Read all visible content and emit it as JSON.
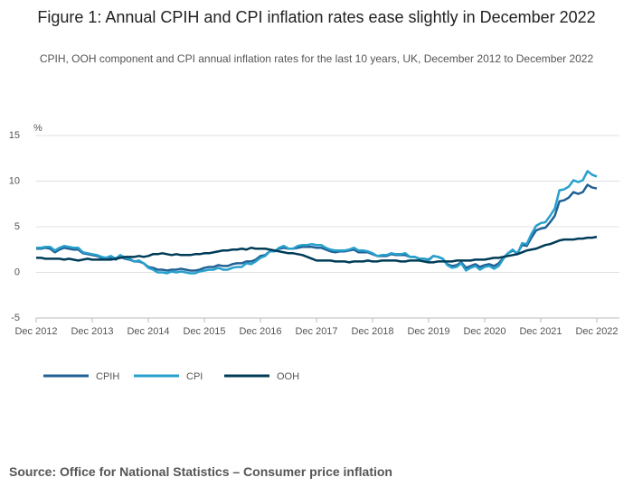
{
  "chart_data": {
    "type": "line",
    "title": "Figure 1: Annual CPIH and CPI inflation rates ease slightly in December 2022",
    "subtitle": "CPIH, OOH component and CPI annual inflation rates for the last 10 years, UK, December 2012 to December 2022",
    "y_unit": "%",
    "source": "Source: Office for National Statistics – Consumer price inflation",
    "categories": [
      "Dec 2012",
      null,
      null,
      null,
      null,
      null,
      null,
      null,
      null,
      null,
      null,
      null,
      "Dec 2013",
      null,
      null,
      null,
      null,
      null,
      null,
      null,
      null,
      null,
      null,
      null,
      "Dec 2014",
      null,
      null,
      null,
      null,
      null,
      null,
      null,
      null,
      null,
      null,
      null,
      "Dec 2015",
      null,
      null,
      null,
      null,
      null,
      null,
      null,
      null,
      null,
      null,
      null,
      "Dec 2016",
      null,
      null,
      null,
      null,
      null,
      null,
      null,
      null,
      null,
      null,
      null,
      "Dec 2017",
      null,
      null,
      null,
      null,
      null,
      null,
      null,
      null,
      null,
      null,
      null,
      "Dec 2018",
      null,
      null,
      null,
      null,
      null,
      null,
      null,
      null,
      null,
      null,
      null,
      "Dec 2019",
      null,
      null,
      null,
      null,
      null,
      null,
      null,
      null,
      null,
      null,
      null,
      "Dec 2020",
      null,
      null,
      null,
      null,
      null,
      null,
      null,
      null,
      null,
      null,
      null,
      "Dec 2021",
      null,
      null,
      null,
      null,
      null,
      null,
      null,
      null,
      null,
      null,
      null,
      "Dec 2022"
    ],
    "series": [
      {
        "name": "CPIH",
        "color": "#206095",
        "values": [
          2.6,
          2.6,
          2.7,
          2.6,
          2.2,
          2.5,
          2.7,
          2.6,
          2.5,
          2.5,
          2.1,
          2.0,
          1.9,
          1.8,
          1.6,
          1.5,
          1.6,
          1.4,
          1.7,
          1.5,
          1.4,
          1.2,
          1.2,
          1.0,
          0.6,
          0.5,
          0.3,
          0.3,
          0.2,
          0.3,
          0.3,
          0.4,
          0.3,
          0.2,
          0.2,
          0.3,
          0.5,
          0.6,
          0.6,
          0.8,
          0.7,
          0.7,
          0.9,
          1.0,
          1.0,
          1.2,
          1.2,
          1.4,
          1.8,
          1.9,
          2.3,
          2.3,
          2.6,
          2.7,
          2.6,
          2.6,
          2.7,
          2.8,
          2.8,
          2.8,
          2.7,
          2.7,
          2.5,
          2.3,
          2.2,
          2.3,
          2.3,
          2.4,
          2.5,
          2.2,
          2.2,
          2.2,
          2.0,
          1.8,
          1.8,
          1.8,
          2.0,
          1.9,
          1.9,
          1.9,
          1.7,
          1.7,
          1.5,
          1.5,
          1.4,
          1.8,
          1.7,
          1.5,
          0.9,
          0.7,
          0.8,
          1.1,
          0.5,
          0.7,
          0.9,
          0.6,
          0.8,
          0.9,
          0.7,
          1.0,
          1.6,
          2.1,
          2.4,
          2.1,
          3.0,
          2.9,
          3.8,
          4.6,
          4.8,
          4.9,
          5.5,
          6.2,
          7.8,
          7.9,
          8.2,
          8.8,
          8.6,
          8.8,
          9.6,
          9.3,
          9.2
        ]
      },
      {
        "name": "CPI",
        "color": "#27a0cc",
        "values": [
          2.7,
          2.7,
          2.8,
          2.8,
          2.4,
          2.7,
          2.9,
          2.8,
          2.7,
          2.7,
          2.2,
          2.1,
          2.0,
          1.9,
          1.7,
          1.6,
          1.8,
          1.5,
          1.9,
          1.6,
          1.5,
          1.2,
          1.3,
          1.0,
          0.5,
          0.3,
          0.0,
          0.0,
          -0.1,
          0.1,
          0.0,
          0.1,
          0.0,
          -0.1,
          -0.1,
          0.1,
          0.2,
          0.3,
          0.3,
          0.5,
          0.3,
          0.3,
          0.5,
          0.6,
          0.6,
          1.0,
          0.9,
          1.2,
          1.6,
          1.8,
          2.3,
          2.3,
          2.7,
          2.9,
          2.6,
          2.6,
          2.9,
          3.0,
          3.0,
          3.1,
          3.0,
          3.0,
          2.7,
          2.5,
          2.4,
          2.4,
          2.4,
          2.5,
          2.7,
          2.4,
          2.4,
          2.3,
          2.1,
          1.8,
          1.9,
          1.9,
          2.1,
          2.0,
          2.0,
          2.1,
          1.7,
          1.7,
          1.5,
          1.5,
          1.3,
          1.8,
          1.7,
          1.5,
          0.8,
          0.5,
          0.6,
          1.0,
          0.2,
          0.5,
          0.7,
          0.3,
          0.6,
          0.7,
          0.4,
          0.7,
          1.5,
          2.1,
          2.5,
          2.0,
          3.2,
          3.1,
          4.2,
          5.1,
          5.4,
          5.5,
          6.2,
          7.0,
          9.0,
          9.1,
          9.4,
          10.1,
          9.9,
          10.1,
          11.1,
          10.7,
          10.5
        ]
      },
      {
        "name": "OOH",
        "color": "#003c57",
        "values": [
          1.6,
          1.6,
          1.5,
          1.5,
          1.5,
          1.5,
          1.4,
          1.5,
          1.4,
          1.3,
          1.4,
          1.5,
          1.4,
          1.4,
          1.4,
          1.4,
          1.4,
          1.5,
          1.6,
          1.7,
          1.7,
          1.7,
          1.8,
          1.7,
          1.8,
          2.0,
          2.0,
          2.1,
          2.0,
          1.9,
          2.0,
          1.9,
          1.9,
          1.9,
          2.0,
          2.0,
          2.1,
          2.1,
          2.2,
          2.3,
          2.4,
          2.4,
          2.5,
          2.5,
          2.6,
          2.5,
          2.7,
          2.6,
          2.6,
          2.6,
          2.5,
          2.4,
          2.3,
          2.2,
          2.1,
          2.1,
          2.0,
          1.9,
          1.7,
          1.5,
          1.3,
          1.3,
          1.3,
          1.3,
          1.2,
          1.2,
          1.2,
          1.1,
          1.2,
          1.2,
          1.2,
          1.3,
          1.2,
          1.2,
          1.3,
          1.3,
          1.3,
          1.3,
          1.2,
          1.2,
          1.3,
          1.3,
          1.3,
          1.2,
          1.1,
          1.1,
          1.2,
          1.2,
          1.2,
          1.2,
          1.3,
          1.3,
          1.3,
          1.3,
          1.4,
          1.4,
          1.4,
          1.5,
          1.6,
          1.6,
          1.7,
          1.8,
          1.9,
          2.0,
          2.2,
          2.4,
          2.5,
          2.6,
          2.8,
          3.0,
          3.1,
          3.3,
          3.5,
          3.6,
          3.6,
          3.6,
          3.7,
          3.7,
          3.8,
          3.8,
          3.9
        ]
      }
    ],
    "ylim": [
      -5,
      15
    ],
    "yticks": [
      -5,
      0,
      5,
      10,
      15
    ],
    "grid": true
  }
}
